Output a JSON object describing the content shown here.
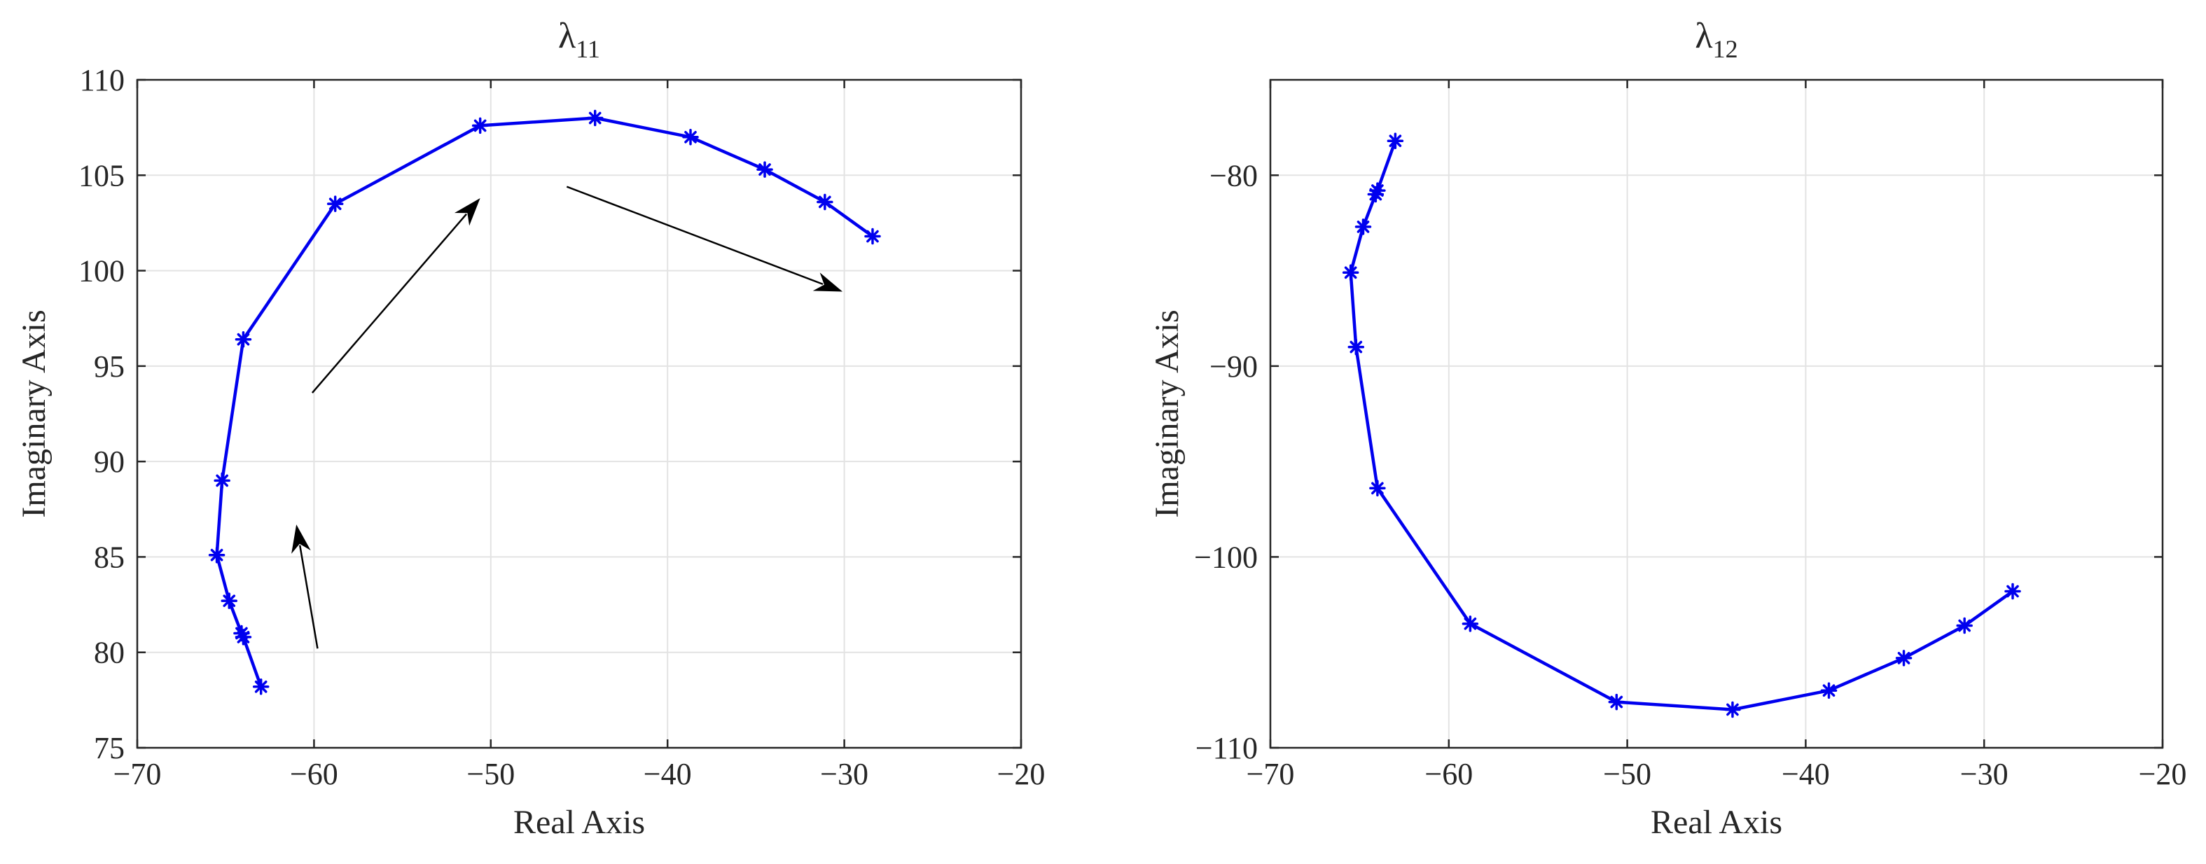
{
  "colors": {
    "series": "#0000ee",
    "axis": "#262626",
    "grid": "#e3e3e3",
    "annotation": "#000000"
  },
  "chart_data": [
    {
      "type": "line",
      "title": "λ",
      "title_subscript": "11",
      "xlabel": "Real Axis",
      "ylabel": "Imaginary Axis",
      "xlim": [
        -70,
        -20
      ],
      "ylim": [
        75,
        110
      ],
      "xticks": [
        -70,
        -60,
        -50,
        -40,
        -30,
        -20
      ],
      "yticks": [
        75,
        80,
        85,
        90,
        95,
        100,
        105,
        110
      ],
      "xtick_labels": [
        "−70",
        "−60",
        "−50",
        "−40",
        "−30",
        "−20"
      ],
      "ytick_labels": [
        "75",
        "80",
        "85",
        "90",
        "95",
        "100",
        "105",
        "110"
      ],
      "grid": true,
      "series": [
        {
          "marker": "asterisk",
          "x": [
            -63,
            -64,
            -64.1,
            -64.8,
            -65.5,
            -65.2,
            -64,
            -58.8,
            -50.6,
            -44.1,
            -38.7,
            -34.5,
            -31.1,
            -28.4
          ],
          "y": [
            78.2,
            80.8,
            81.0,
            82.7,
            85.1,
            89.0,
            96.4,
            103.5,
            107.6,
            108.0,
            107.0,
            105.3,
            103.6,
            101.8
          ]
        }
      ],
      "annotations": [
        {
          "type": "arrow",
          "from": [
            -59.8,
            80.2
          ],
          "to": [
            -61,
            86.7
          ]
        },
        {
          "type": "arrow",
          "from": [
            -60.1,
            93.6
          ],
          "to": [
            -50.6,
            103.8
          ]
        },
        {
          "type": "arrow",
          "from": [
            -45.7,
            104.4
          ],
          "to": [
            -30.1,
            98.9
          ]
        }
      ]
    },
    {
      "type": "line",
      "title": "λ",
      "title_subscript": "12",
      "xlabel": "Real Axis",
      "ylabel": "Imaginary Axis",
      "xlim": [
        -70,
        -20
      ],
      "ylim": [
        -110,
        -75
      ],
      "xticks": [
        -70,
        -60,
        -50,
        -40,
        -30,
        -20
      ],
      "yticks": [
        -110,
        -100,
        -90,
        -80
      ],
      "xtick_labels": [
        "−70",
        "−60",
        "−50",
        "−40",
        "−30",
        "−20"
      ],
      "ytick_labels": [
        "−110",
        "−100",
        "−90",
        "−80"
      ],
      "grid": true,
      "series": [
        {
          "marker": "asterisk",
          "x": [
            -63,
            -64,
            -64.1,
            -64.8,
            -65.5,
            -65.2,
            -64,
            -58.8,
            -50.6,
            -44.1,
            -38.7,
            -34.5,
            -31.1,
            -28.4
          ],
          "y": [
            -78.2,
            -80.8,
            -81.0,
            -82.7,
            -85.1,
            -89.0,
            -96.4,
            -103.5,
            -107.6,
            -108.0,
            -107.0,
            -105.3,
            -103.6,
            -101.8
          ]
        }
      ],
      "annotations": []
    }
  ]
}
